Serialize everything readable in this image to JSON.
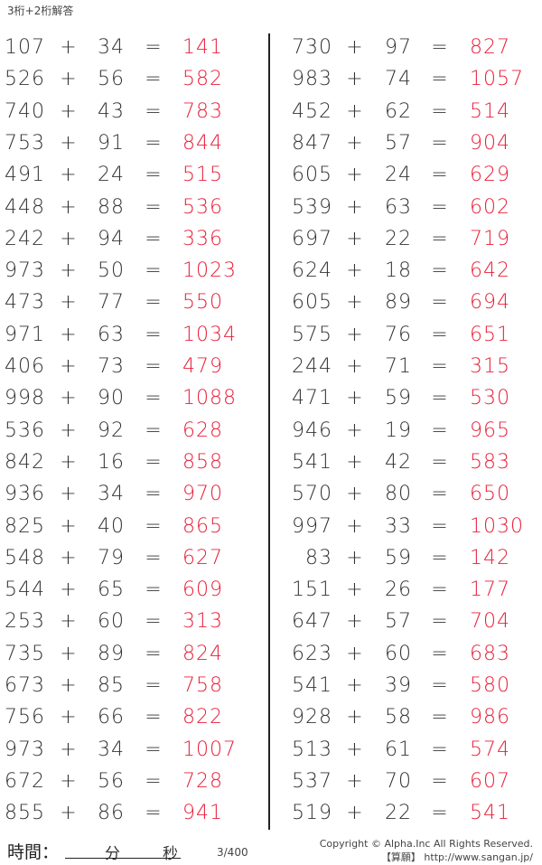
{
  "title": "3桁+2桁解答",
  "plus": "+",
  "equals": "=",
  "left": [
    [
      "107",
      "34",
      "141"
    ],
    [
      "526",
      "56",
      "582"
    ],
    [
      "740",
      "43",
      "783"
    ],
    [
      "753",
      "91",
      "844"
    ],
    [
      "491",
      "24",
      "515"
    ],
    [
      "448",
      "88",
      "536"
    ],
    [
      "242",
      "94",
      "336"
    ],
    [
      "973",
      "50",
      "1023"
    ],
    [
      "473",
      "77",
      "550"
    ],
    [
      "971",
      "63",
      "1034"
    ],
    [
      "406",
      "73",
      "479"
    ],
    [
      "998",
      "90",
      "1088"
    ],
    [
      "536",
      "92",
      "628"
    ],
    [
      "842",
      "16",
      "858"
    ],
    [
      "936",
      "34",
      "970"
    ],
    [
      "825",
      "40",
      "865"
    ],
    [
      "548",
      "79",
      "627"
    ],
    [
      "544",
      "65",
      "609"
    ],
    [
      "253",
      "60",
      "313"
    ],
    [
      "735",
      "89",
      "824"
    ],
    [
      "673",
      "85",
      "758"
    ],
    [
      "756",
      "66",
      "822"
    ],
    [
      "973",
      "34",
      "1007"
    ],
    [
      "672",
      "56",
      "728"
    ],
    [
      "855",
      "86",
      "941"
    ]
  ],
  "right": [
    [
      "730",
      "97",
      "827"
    ],
    [
      "983",
      "74",
      "1057"
    ],
    [
      "452",
      "62",
      "514"
    ],
    [
      "847",
      "57",
      "904"
    ],
    [
      "605",
      "24",
      "629"
    ],
    [
      "539",
      "63",
      "602"
    ],
    [
      "697",
      "22",
      "719"
    ],
    [
      "624",
      "18",
      "642"
    ],
    [
      "605",
      "89",
      "694"
    ],
    [
      "575",
      "76",
      "651"
    ],
    [
      "244",
      "71",
      "315"
    ],
    [
      "471",
      "59",
      "530"
    ],
    [
      "946",
      "19",
      "965"
    ],
    [
      "541",
      "42",
      "583"
    ],
    [
      "570",
      "80",
      "650"
    ],
    [
      "997",
      "33",
      "1030"
    ],
    [
      "83",
      "59",
      "142"
    ],
    [
      "151",
      "26",
      "177"
    ],
    [
      "647",
      "57",
      "704"
    ],
    [
      "623",
      "60",
      "683"
    ],
    [
      "541",
      "39",
      "580"
    ],
    [
      "928",
      "58",
      "986"
    ],
    [
      "513",
      "61",
      "574"
    ],
    [
      "537",
      "70",
      "607"
    ],
    [
      "519",
      "22",
      "541"
    ]
  ],
  "footer": {
    "time_label": "時間：",
    "minutes": "分",
    "seconds": "秒",
    "page": "3/400",
    "copyright": "Copyright © Alpha.Inc All Rights Reserved.",
    "site": "【算願】 http://www.sangan.jp/"
  },
  "colors": {
    "answer": "#e8203a"
  }
}
